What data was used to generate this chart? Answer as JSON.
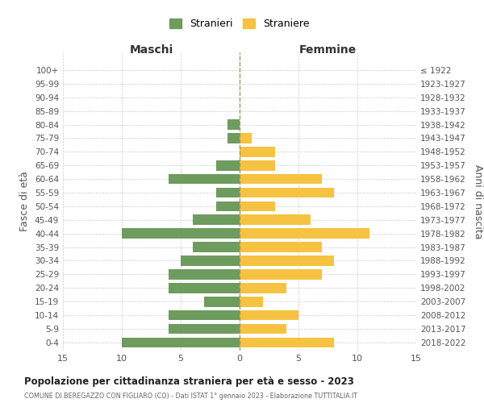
{
  "age_groups": [
    "0-4",
    "5-9",
    "10-14",
    "15-19",
    "20-24",
    "25-29",
    "30-34",
    "35-39",
    "40-44",
    "45-49",
    "50-54",
    "55-59",
    "60-64",
    "65-69",
    "70-74",
    "75-79",
    "80-84",
    "85-89",
    "90-94",
    "95-99",
    "100+"
  ],
  "birth_years": [
    "2018-2022",
    "2013-2017",
    "2008-2012",
    "2003-2007",
    "1998-2002",
    "1993-1997",
    "1988-1992",
    "1983-1987",
    "1978-1982",
    "1973-1977",
    "1968-1972",
    "1963-1967",
    "1958-1962",
    "1953-1957",
    "1948-1952",
    "1943-1947",
    "1938-1942",
    "1933-1937",
    "1928-1932",
    "1923-1927",
    "≤ 1922"
  ],
  "males": [
    10,
    6,
    6,
    3,
    6,
    6,
    5,
    4,
    10,
    4,
    2,
    2,
    6,
    2,
    0,
    1,
    1,
    0,
    0,
    0,
    0
  ],
  "females": [
    8,
    4,
    5,
    2,
    4,
    7,
    8,
    7,
    11,
    6,
    3,
    8,
    7,
    3,
    3,
    1,
    0,
    0,
    0,
    0,
    0
  ],
  "male_color": "#6e9b5e",
  "female_color": "#f5c242",
  "male_label": "Stranieri",
  "female_label": "Straniere",
  "title": "Popolazione per cittadinanza straniera per età e sesso - 2023",
  "subtitle": "COMUNE DI BEREGAZZO CON FIGLIARO (CO) - Dati ISTAT 1° gennaio 2023 - Elaborazione TUTTITALIA.IT",
  "xlabel_left": "Maschi",
  "xlabel_right": "Femmine",
  "ylabel_left": "Fasce di età",
  "ylabel_right": "Anni di nascita",
  "xlim": 15,
  "background_color": "#ffffff",
  "grid_color": "#cccccc"
}
